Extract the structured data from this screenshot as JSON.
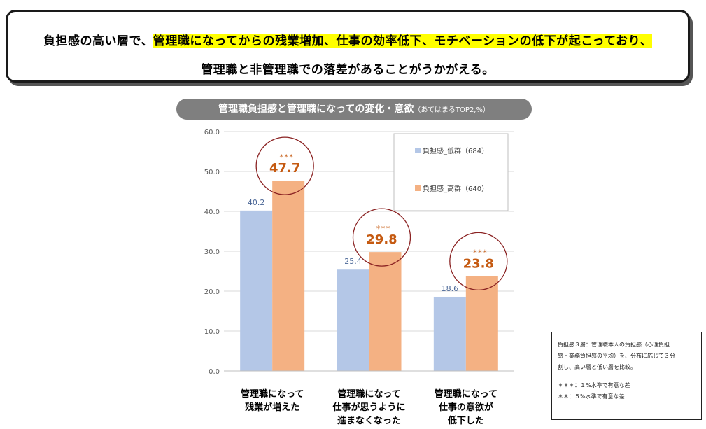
{
  "headline": {
    "line1_before": "負担感の高い層で、",
    "line1_highlight": "管理職になってからの残業増加、仕事の効率低下、モチベーションの低下が起こっており、",
    "line2": "管理職と非管理職での落差があることがうかがえる。"
  },
  "chart_title": {
    "main": "管理職負担感と管理職になっての変化・意欲",
    "sub": "（あてはまるTOP2,%）"
  },
  "chart_data": {
    "type": "bar",
    "title": "管理職負担感と管理職になっての変化・意欲",
    "subtitle": "（あてはまるTOP2,%）",
    "categories": [
      "管理職になって\n残業が増えた",
      "管理職になって\n仕事が思うように\n進まなくなった",
      "管理職になって\n仕事の意欲が\n低下した"
    ],
    "series": [
      {
        "name": "負担感_低群（684）",
        "values": [
          40.2,
          25.4,
          18.6
        ],
        "color": "#b4c7e7"
      },
      {
        "name": "負担感_高群（640）",
        "values": [
          47.7,
          29.8,
          23.8
        ],
        "color": "#f4b183"
      }
    ],
    "value_labels": {
      "low": [
        "40.2",
        "25.4",
        "18.6"
      ],
      "high": [
        "47.7",
        "29.8",
        "23.8"
      ]
    },
    "significance": [
      "＊＊＊",
      "＊＊＊",
      "＊＊＊"
    ],
    "ylim": [
      0,
      60
    ],
    "yticks": [
      "0.0",
      "10.0",
      "20.0",
      "30.0",
      "40.0",
      "50.0",
      "60.0"
    ],
    "grid": true,
    "legend_position": "top-right",
    "label_colors": {
      "low": "#4a6696",
      "high": "#c55a11",
      "circle": "#8b2323"
    }
  },
  "note": {
    "line1": "負担感３層：管理職本人の負担感（心理負担",
    "line2": "感・業務負担感の平均）を、分布に応じて３分",
    "line3": "割し、高い層と低い層を比較。",
    "sig1": "＊＊＊：１%水準で有意な差",
    "sig2": "＊＊：５%水準で有意な差"
  }
}
